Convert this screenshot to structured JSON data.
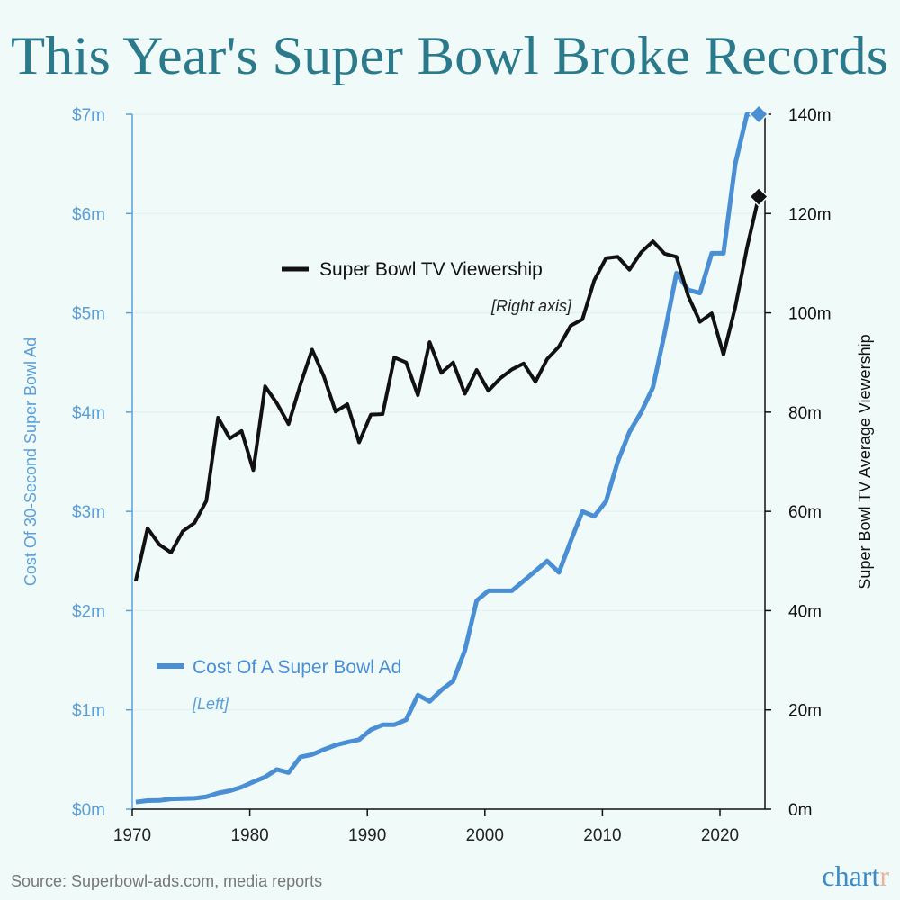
{
  "chart_data": {
    "type": "line",
    "title": "This Year's Super Bowl Broke Records",
    "x": [
      1970,
      1971,
      1972,
      1973,
      1974,
      1975,
      1976,
      1977,
      1978,
      1979,
      1980,
      1981,
      1982,
      1983,
      1984,
      1985,
      1986,
      1987,
      1988,
      1989,
      1990,
      1991,
      1992,
      1993,
      1994,
      1995,
      1996,
      1997,
      1998,
      1999,
      2000,
      2001,
      2002,
      2003,
      2004,
      2005,
      2006,
      2007,
      2008,
      2009,
      2010,
      2011,
      2012,
      2013,
      2014,
      2015,
      2016,
      2017,
      2018,
      2019,
      2020,
      2021,
      2022,
      2023
    ],
    "xticks": [
      "1970",
      "1980",
      "1990",
      "2000",
      "2010",
      "2020"
    ],
    "xlim": [
      1970,
      2023
    ],
    "left_axis": {
      "label": "Cost Of 30-Second Super Bowl Ad",
      "unit": "$ millions",
      "ylim": [
        0,
        7
      ],
      "ticks": [
        "$0m",
        "$1m",
        "$2m",
        "$3m",
        "$4m",
        "$5m",
        "$6m",
        "$7m"
      ],
      "color": "#5b9fd6"
    },
    "right_axis": {
      "label": "Super Bowl TV Average Viewership",
      "unit": "millions",
      "ylim": [
        0,
        140
      ],
      "ticks": [
        "0m",
        "20m",
        "40m",
        "60m",
        "80m",
        "100m",
        "120m",
        "140m"
      ],
      "color": "#111111"
    },
    "series": [
      {
        "name": "Cost Of A Super Bowl Ad",
        "axis": "left",
        "note": "[Left]",
        "color": "#4a8fd3",
        "end_marker": "diamond",
        "values": [
          0.072,
          0.086,
          0.088,
          0.103,
          0.107,
          0.11,
          0.125,
          0.162,
          0.185,
          0.222,
          0.275,
          0.324,
          0.4,
          0.368,
          0.525,
          0.55,
          0.6,
          0.645,
          0.675,
          0.7,
          0.8,
          0.85,
          0.85,
          0.9,
          1.15,
          1.085,
          1.2,
          1.291,
          1.6,
          2.1,
          2.2,
          2.2,
          2.2,
          2.3,
          2.4,
          2.5,
          2.385,
          2.7,
          3.0,
          2.95,
          3.1,
          3.5,
          3.8,
          4.0,
          4.25,
          4.8,
          5.4,
          5.23,
          5.2,
          5.6,
          5.6,
          6.5,
          7.0,
          7.0
        ]
      },
      {
        "name": "Super Bowl TV Viewership",
        "axis": "right",
        "note": "[Right axis]",
        "color": "#111111",
        "end_marker": "diamond",
        "values": [
          46.0,
          56.6,
          53.3,
          51.7,
          56.0,
          57.7,
          62.1,
          78.9,
          74.7,
          76.2,
          68.3,
          85.2,
          81.8,
          77.6,
          85.5,
          92.6,
          87.2,
          80.1,
          81.6,
          73.9,
          79.5,
          79.6,
          91.0,
          90.0,
          83.4,
          94.1,
          87.9,
          90.0,
          83.7,
          88.5,
          84.3,
          86.8,
          88.6,
          89.8,
          86.1,
          90.7,
          93.2,
          97.4,
          98.7,
          106.5,
          111.0,
          111.3,
          108.7,
          112.2,
          114.4,
          111.9,
          111.3,
          103.4,
          98.2,
          99.9,
          91.6,
          101.1,
          113.1,
          123.4
        ]
      }
    ],
    "grid": "horizontal",
    "legend_placement": "inline"
  },
  "footer": {
    "source": "Source: Superbowl-ads.com, media reports",
    "logo_main": "chart",
    "logo_accent": "r",
    "logo_colors": {
      "main": "#3a8bc7",
      "accent": "#e8b49a"
    }
  },
  "colors": {
    "background": "#f0faf9",
    "title": "#2b7a8c"
  }
}
